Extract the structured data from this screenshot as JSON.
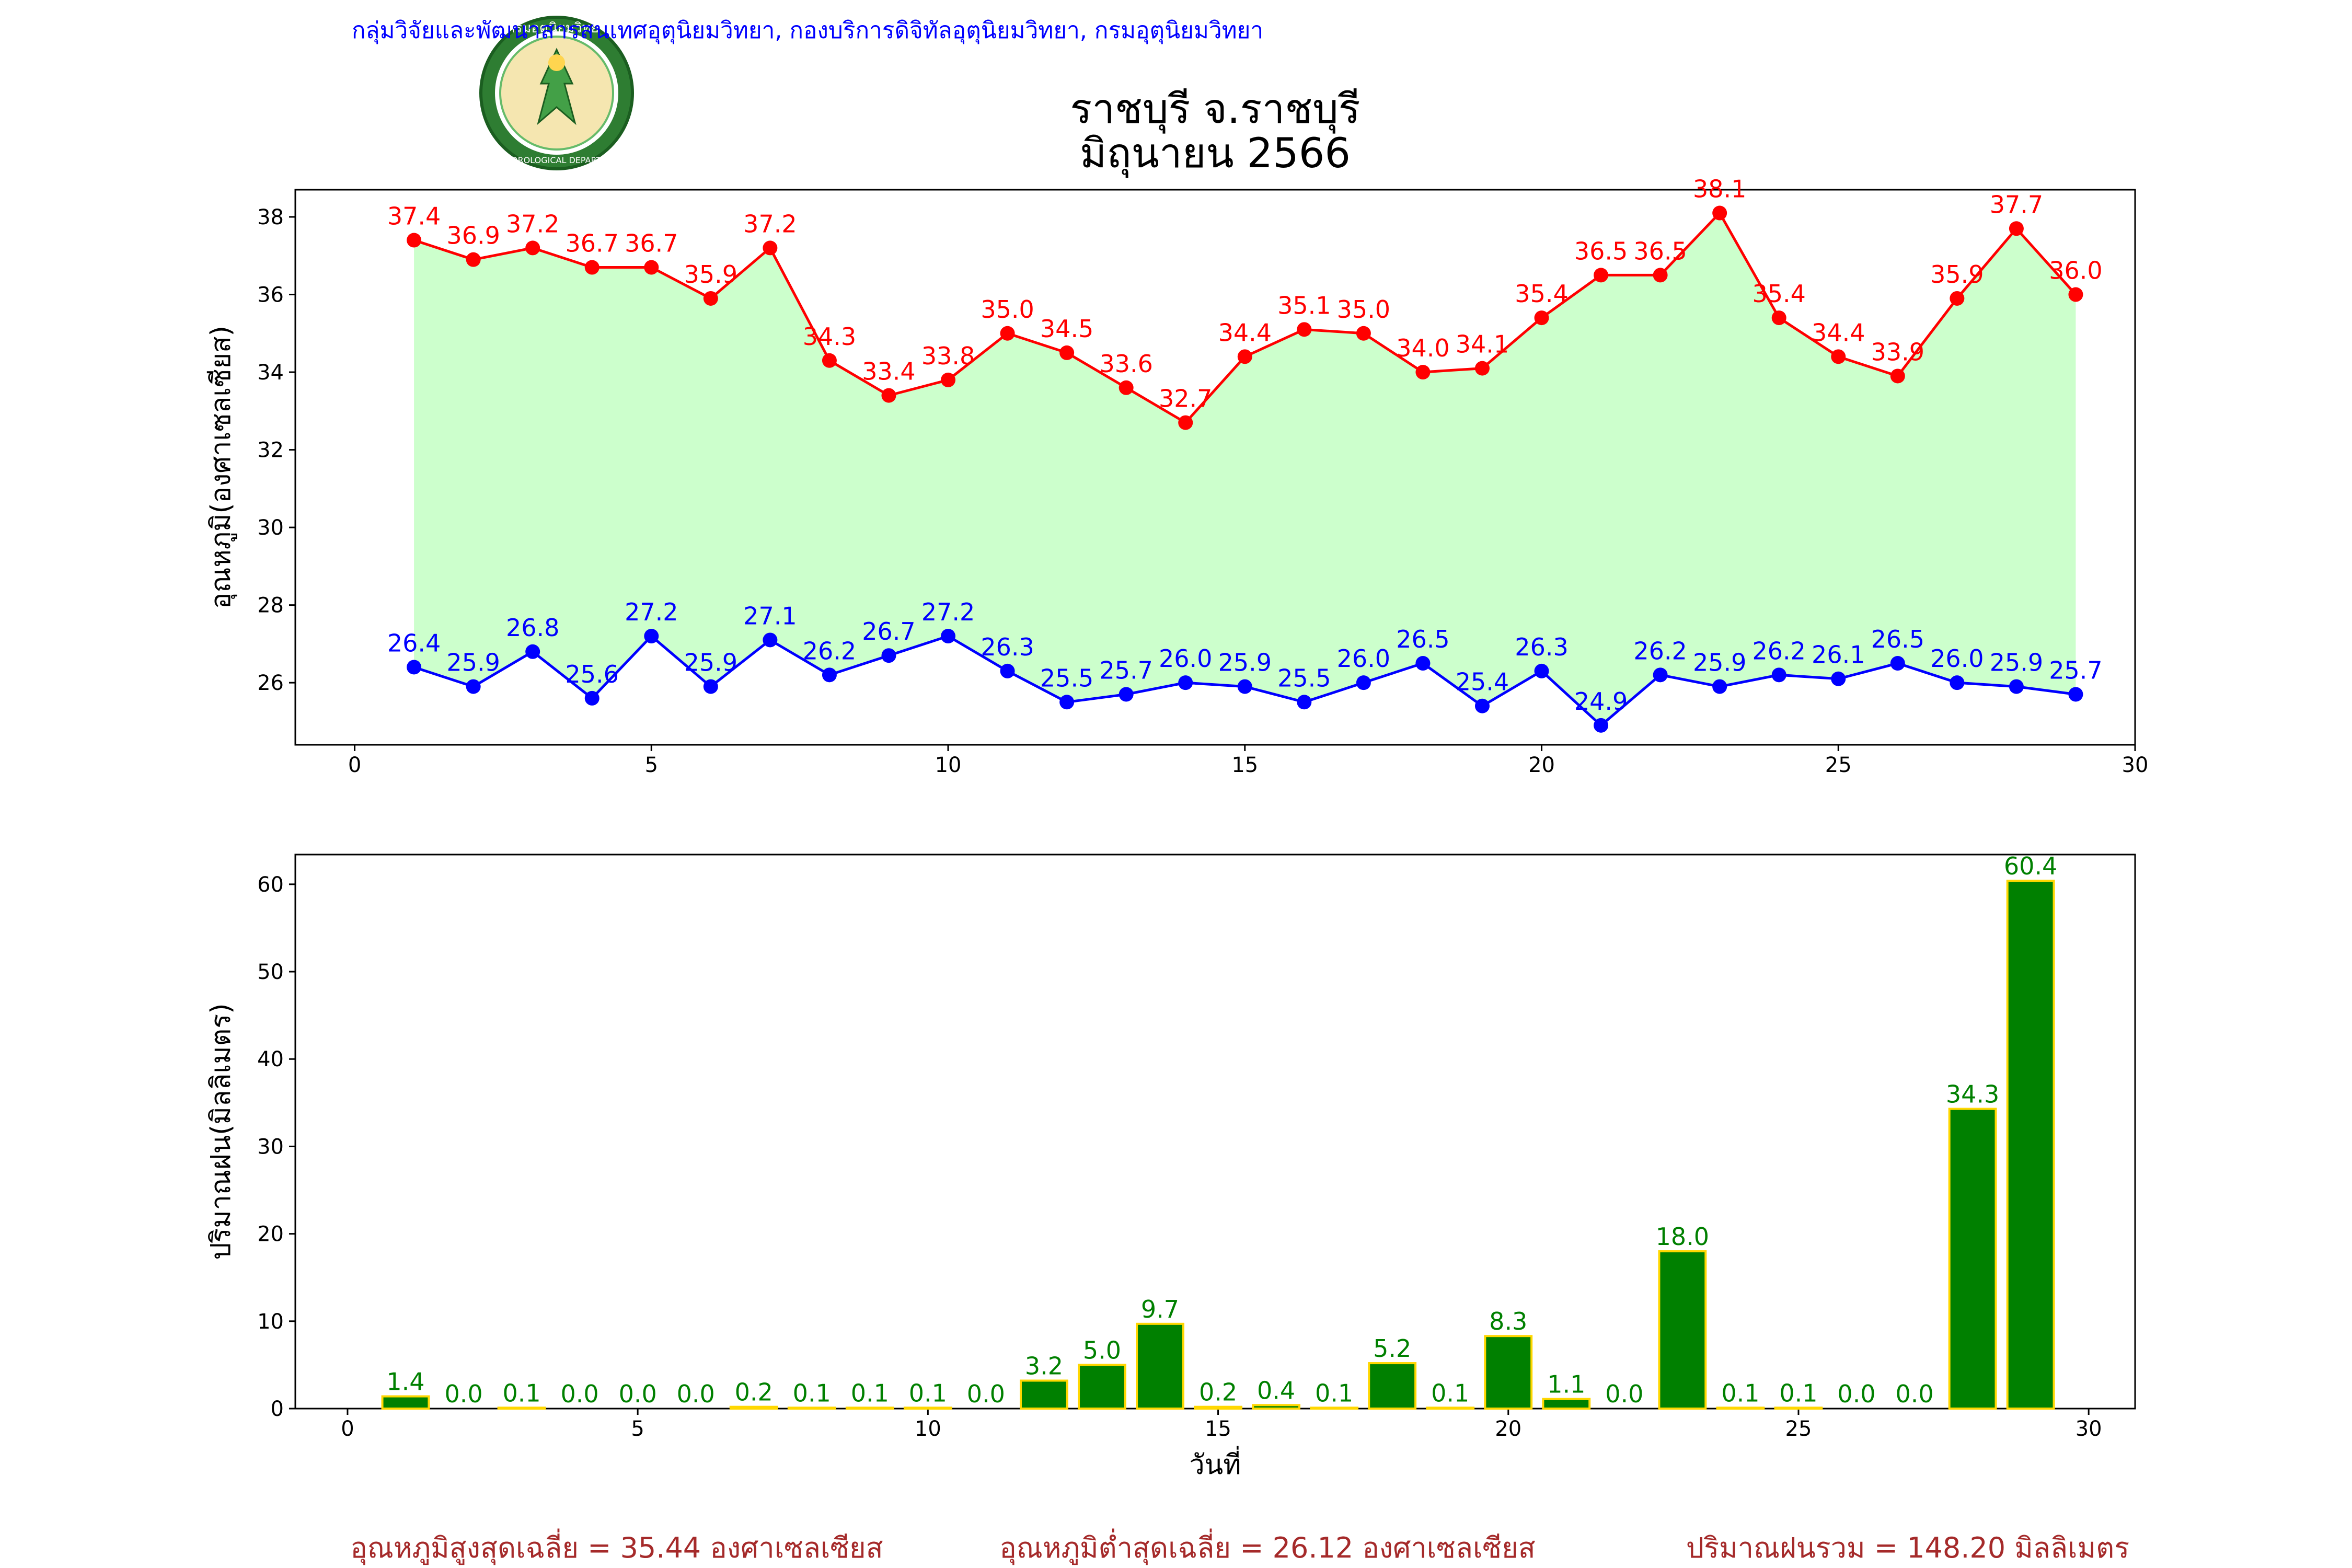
{
  "header": {
    "agency": "กลุ่มวิจัยและพัฒนาสารสนเทศอุตุนิยมวิทยา, กองบริการดิจิทัลอุตุนิยมวิทยา, กรมอุตุนิยมวิทยา",
    "title_line1": "ราชบุรี จ.ราชบุรี",
    "title_line2": "มิถุนายน 2566",
    "logo_text": "กรมอุตุนิยมวิทยา",
    "logo_subtext": "METEOROLOGICAL DEPARTMENT"
  },
  "colors": {
    "max_line": "#ff0000",
    "min_line": "#0000ff",
    "fill": "#ccffcc",
    "bar": "#008000",
    "bar_edge": "#ffd700",
    "bar_label": "#008000",
    "agency": "#0000ff",
    "footer": "#a52a2a"
  },
  "chart_data": [
    {
      "type": "line",
      "ylabel": "อุณหภูมิ(องศาเซลเซียส)",
      "xlabel": "",
      "xlim": [
        -1,
        30
      ],
      "ylim": [
        24.4,
        38.7
      ],
      "xticks": [
        0,
        5,
        10,
        15,
        20,
        25,
        30
      ],
      "yticks": [
        26,
        28,
        30,
        32,
        34,
        36,
        38
      ],
      "fill_between": "max-min",
      "x": [
        1,
        2,
        3,
        4,
        5,
        6,
        7,
        8,
        9,
        10,
        11,
        12,
        13,
        14,
        15,
        16,
        17,
        18,
        19,
        20,
        21,
        22,
        23,
        24,
        25,
        26,
        27,
        28,
        29
      ],
      "series": [
        {
          "key": "max",
          "values": [
            37.4,
            36.9,
            37.2,
            36.7,
            36.7,
            35.9,
            37.2,
            34.3,
            33.4,
            33.8,
            35.0,
            34.5,
            33.6,
            32.7,
            34.4,
            35.1,
            35.0,
            34.0,
            34.1,
            35.4,
            36.5,
            36.5,
            38.1,
            35.4,
            34.4,
            33.9,
            35.9,
            37.7,
            36.0
          ]
        },
        {
          "key": "min",
          "values": [
            26.4,
            25.9,
            26.8,
            25.6,
            27.2,
            25.9,
            27.1,
            26.2,
            26.7,
            27.2,
            26.3,
            25.5,
            25.7,
            26.0,
            25.9,
            25.5,
            26.0,
            26.5,
            25.4,
            26.3,
            24.9,
            26.2,
            25.9,
            26.2,
            26.1,
            26.5,
            26.0,
            25.9,
            25.7
          ]
        }
      ]
    },
    {
      "type": "bar",
      "ylabel": "ปริมาณฝน(มิลลิเมตร)",
      "xlabel": "วันที่",
      "xlim": [
        -0.9,
        30.8
      ],
      "ylim": [
        0,
        63.4
      ],
      "xticks": [
        0,
        5,
        10,
        15,
        20,
        25,
        30
      ],
      "yticks": [
        0,
        10,
        20,
        30,
        40,
        50,
        60
      ],
      "x": [
        1,
        2,
        3,
        4,
        5,
        6,
        7,
        8,
        9,
        10,
        11,
        12,
        13,
        14,
        15,
        16,
        17,
        18,
        19,
        20,
        21,
        22,
        23,
        24,
        25,
        26,
        27,
        28,
        29
      ],
      "values": [
        1.4,
        0.0,
        0.1,
        0.0,
        0.0,
        0.0,
        0.2,
        0.1,
        0.1,
        0.1,
        0.0,
        3.2,
        5.0,
        9.7,
        0.2,
        0.4,
        0.1,
        5.2,
        0.1,
        8.3,
        1.1,
        0.0,
        18.0,
        0.1,
        0.1,
        0.0,
        0.0,
        34.3,
        60.4
      ]
    }
  ],
  "footer": {
    "avg_max": "อุณหภูมิสูงสุดเฉลี่ย = 35.44 องศาเซลเซียส",
    "avg_min": "อุณหภูมิต่ำสุดเฉลี่ย = 26.12 องศาเซลเซียส",
    "rain_total": "ปริมาณฝนรวม = 148.20 มิลลิเมตร"
  }
}
